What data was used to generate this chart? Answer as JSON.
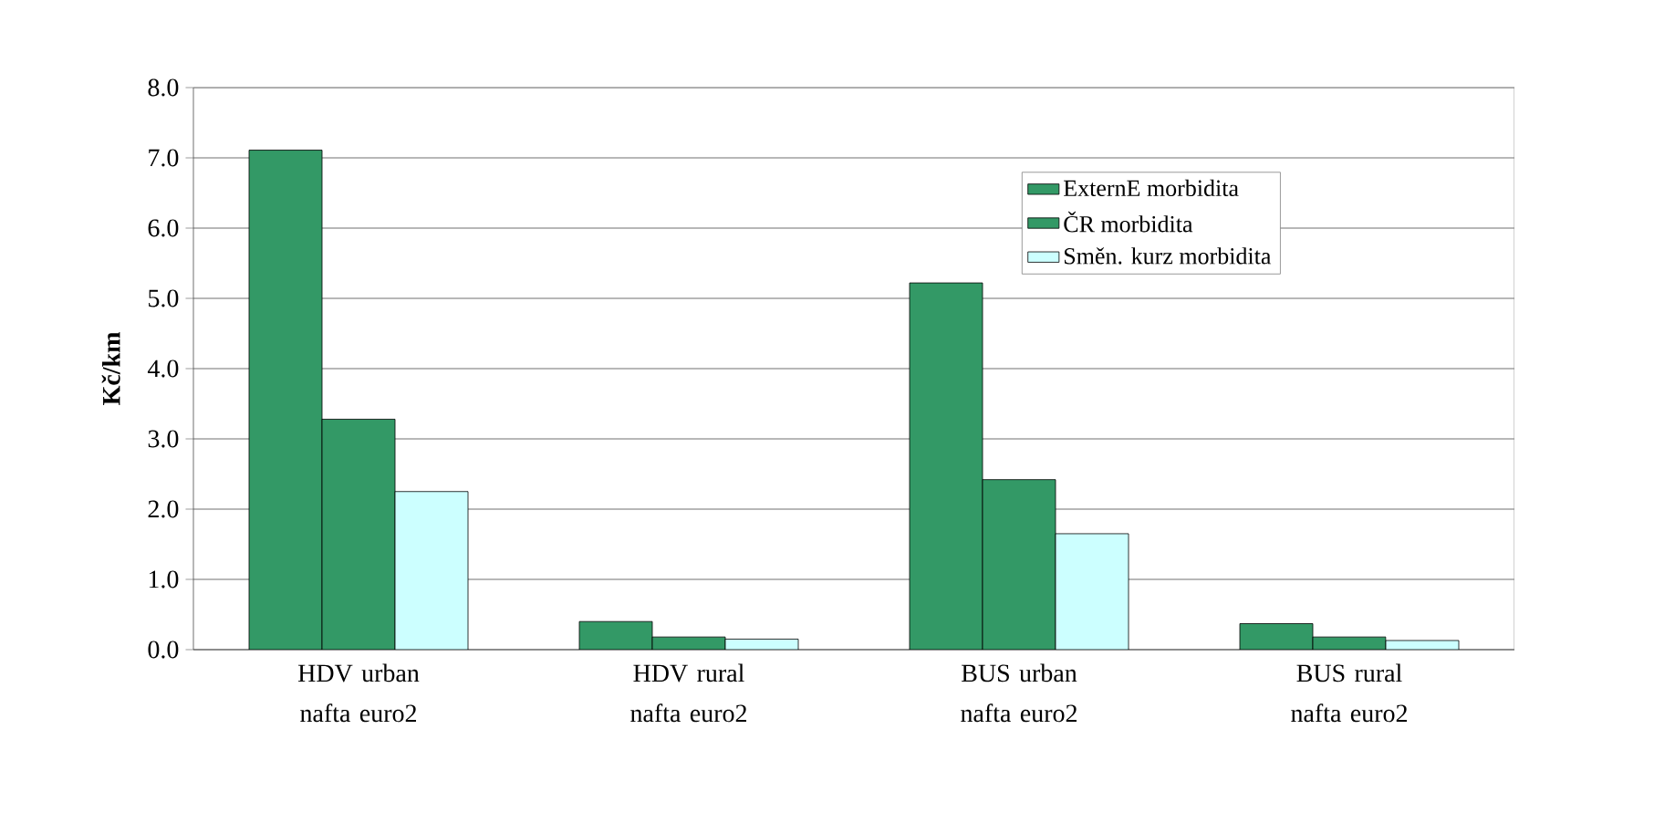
{
  "chart_data": {
    "type": "bar",
    "ylabel": "Kč/km",
    "categories": [
      "HDV urban nafta euro2",
      "HDV rural nafta euro2",
      "BUS urban nafta euro2",
      "BUS rural nafta euro2"
    ],
    "series": [
      {
        "name": "ExternE morbidita",
        "color": "#339966",
        "values": [
          7.11,
          0.4,
          5.22,
          0.37
        ]
      },
      {
        "name": "ČR morbidita",
        "color": "#339966",
        "values": [
          3.28,
          0.18,
          2.42,
          0.18
        ]
      },
      {
        "name": "Směn. kurz morbidita",
        "color": "#ccffff",
        "values": [
          2.25,
          0.15,
          1.65,
          0.13
        ]
      }
    ],
    "ylim": [
      0,
      8
    ],
    "yticks": [
      {
        "value": 0,
        "label": "0.0"
      },
      {
        "value": 1,
        "label": "1.0"
      },
      {
        "value": 2,
        "label": "2.0"
      },
      {
        "value": 3,
        "label": "3.0"
      },
      {
        "value": 4,
        "label": "4.0"
      },
      {
        "value": 5,
        "label": "5.0"
      },
      {
        "value": 6,
        "label": "6.0"
      },
      {
        "value": 7,
        "label": "7.0"
      },
      {
        "value": 8,
        "label": "8.0"
      }
    ],
    "grid": "y",
    "legend": "top right"
  }
}
